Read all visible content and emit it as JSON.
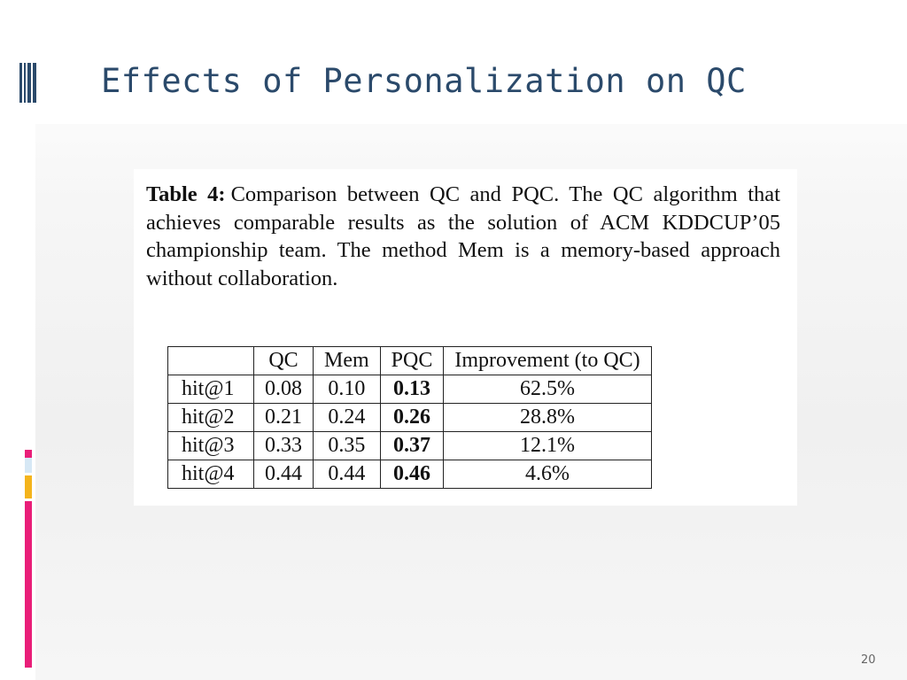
{
  "slide": {
    "title": "Effects of Personalization on QC",
    "page_number": "20"
  },
  "figure": {
    "caption_label": "Table 4:",
    "caption_text": "Comparison between QC and PQC. The QC algorithm that achieves comparable results as the solution of ACM KDDCUP’05 championship team.  The method Mem is a memory-based approach without collaboration.",
    "table": {
      "headers": [
        "",
        "QC",
        "Mem",
        "PQC",
        "Improvement (to QC)"
      ],
      "rows": [
        [
          "hit@1",
          "0.08",
          "0.10",
          "0.13",
          "62.5%"
        ],
        [
          "hit@2",
          "0.21",
          "0.24",
          "0.26",
          "28.8%"
        ],
        [
          "hit@3",
          "0.33",
          "0.35",
          "0.37",
          "12.1%"
        ],
        [
          "hit@4",
          "0.44",
          "0.44",
          "0.46",
          "4.6%"
        ]
      ]
    }
  },
  "colors": {
    "title": "#2b4a6b",
    "accent_pink": "#e91e78",
    "accent_orange": "#f4b41c",
    "accent_blue": "#d6e8f5"
  }
}
